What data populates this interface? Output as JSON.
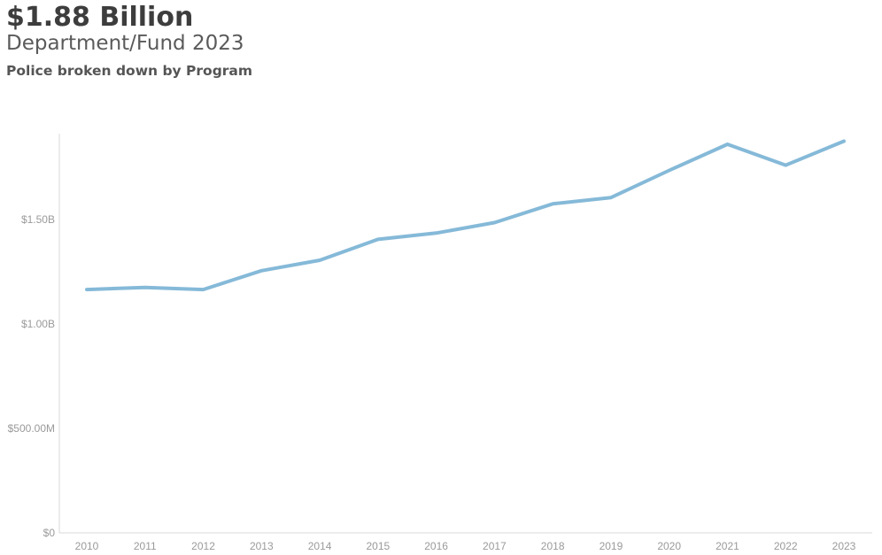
{
  "header": {
    "headline": "$1.88 Billion",
    "subhead": "Department/Fund 2023",
    "breakdown": "Police broken down by Program"
  },
  "colors": {
    "line": "#85b9d8",
    "axis": "#d9d9d9",
    "tick_text": "#9a9a9a"
  },
  "chart_data": {
    "type": "line",
    "x": [
      "2010",
      "2011",
      "2012",
      "2013",
      "2014",
      "2015",
      "2016",
      "2017",
      "2018",
      "2019",
      "2020",
      "2021",
      "2022",
      "2023"
    ],
    "series": [
      {
        "values": [
          1165000000,
          1175000000,
          1165000000,
          1255000000,
          1305000000,
          1405000000,
          1435000000,
          1485000000,
          1575000000,
          1605000000,
          1735000000,
          1860000000,
          1760000000,
          1875000000
        ]
      }
    ],
    "yticks": [
      {
        "value": 0,
        "label": "$0"
      },
      {
        "value": 500000000,
        "label": "$500.00M"
      },
      {
        "value": 1000000000,
        "label": "$1.00B"
      },
      {
        "value": 1500000000,
        "label": "$1.50B"
      }
    ],
    "ylim": [
      0,
      1920000000
    ],
    "grid": false
  }
}
